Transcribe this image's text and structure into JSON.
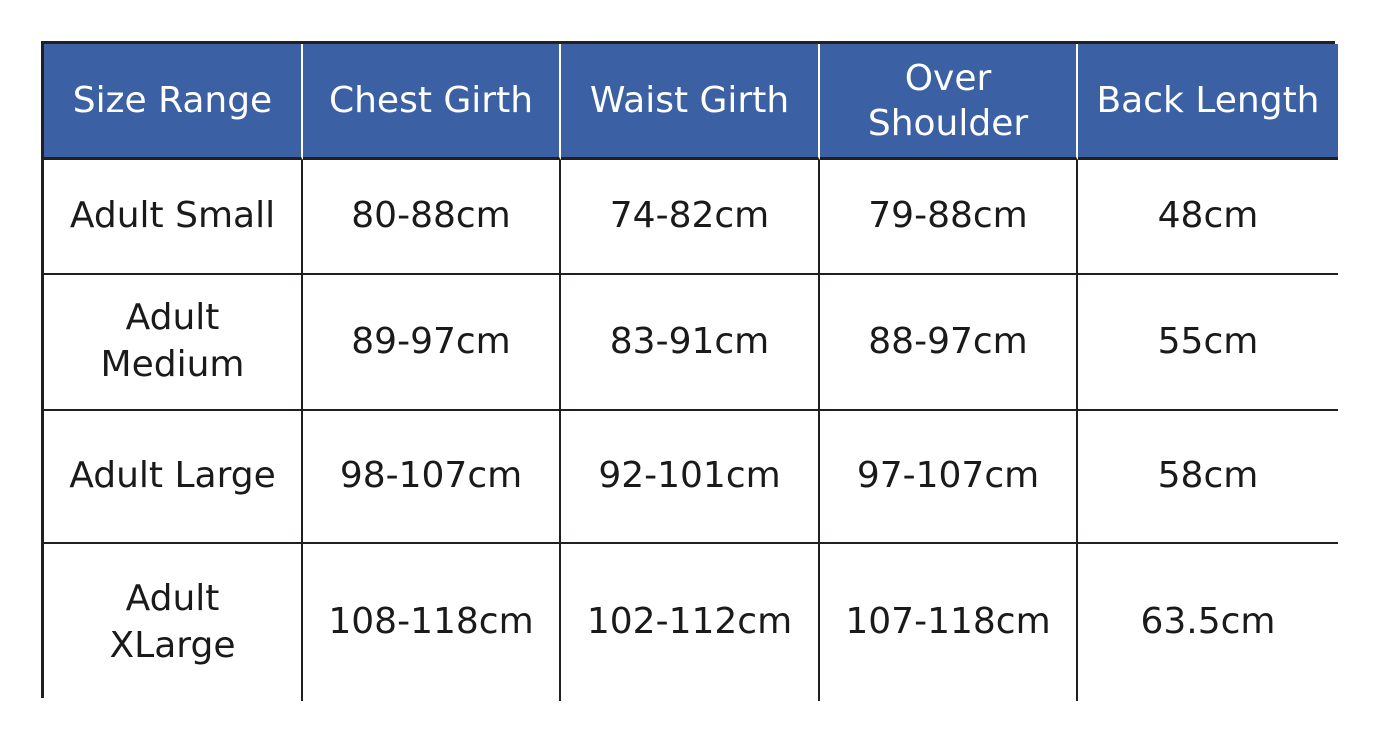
{
  "table": {
    "header_color": "#3b60a4",
    "headers": [
      "Size Range",
      "Chest Girth",
      "Waist Girth",
      "Over\nShoulder",
      "Back Length"
    ],
    "rows": [
      [
        "Adult Small",
        "80-88cm",
        "74-82cm",
        "79-88cm",
        "48cm"
      ],
      [
        "Adult\nMedium",
        "89-97cm",
        "83-91cm",
        "88-97cm",
        "55cm"
      ],
      [
        "Adult Large",
        "98-107cm",
        "92-101cm",
        "97-107cm",
        "58cm"
      ],
      [
        "Adult\nXLarge",
        "108-118cm",
        "102-112cm",
        "107-118cm",
        "63.5cm"
      ]
    ]
  }
}
